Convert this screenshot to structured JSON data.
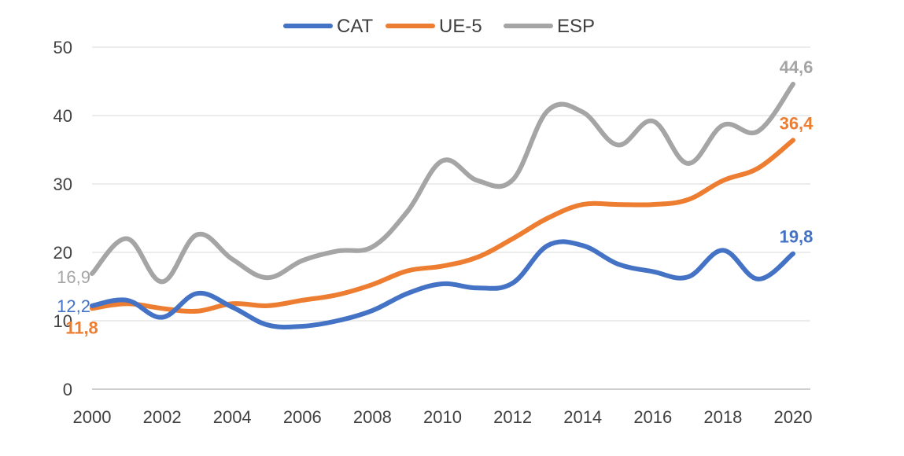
{
  "chart_data": {
    "type": "line",
    "title": "",
    "xlabel": "",
    "ylabel": "",
    "ylim": [
      0,
      50
    ],
    "yticks": [
      0,
      10,
      20,
      30,
      40,
      50
    ],
    "xlim": [
      2000,
      2020
    ],
    "xticks": [
      2000,
      2002,
      2004,
      2006,
      2008,
      2010,
      2012,
      2014,
      2016,
      2018,
      2020
    ],
    "grid": "horizontal",
    "legend_position": "top-center",
    "x": [
      2000,
      2001,
      2002,
      2003,
      2004,
      2005,
      2006,
      2007,
      2008,
      2009,
      2010,
      2011,
      2012,
      2013,
      2014,
      2015,
      2016,
      2017,
      2018,
      2019,
      2020
    ],
    "series": [
      {
        "name": "CAT",
        "color": "#4472C4",
        "values": [
          12.2,
          13.0,
          10.5,
          14.0,
          12.0,
          9.4,
          9.2,
          10.0,
          11.5,
          14.0,
          15.4,
          14.8,
          15.5,
          21.0,
          21.0,
          18.3,
          17.2,
          16.4,
          20.3,
          16.1,
          19.8
        ]
      },
      {
        "name": "UE-5",
        "color": "#ED7D31",
        "values": [
          11.8,
          12.5,
          11.8,
          11.4,
          12.5,
          12.2,
          13.0,
          13.8,
          15.3,
          17.3,
          18.0,
          19.3,
          22.0,
          25.0,
          27.0,
          27.0,
          27.0,
          27.7,
          30.5,
          32.3,
          36.4
        ]
      },
      {
        "name": "ESP",
        "color": "#A5A5A5",
        "values": [
          16.9,
          22.0,
          15.7,
          22.6,
          19.0,
          16.3,
          18.8,
          20.2,
          20.8,
          26.0,
          33.4,
          30.5,
          30.6,
          40.7,
          40.5,
          35.7,
          39.2,
          33.0,
          38.6,
          37.7,
          44.6
        ]
      }
    ],
    "annotations": [
      {
        "series": "ESP",
        "year": 2000,
        "text": "16,9",
        "color": "#A5A5A5",
        "bold": false,
        "side": "left"
      },
      {
        "series": "CAT",
        "year": 2000,
        "text": "12,2",
        "color": "#4472C4",
        "bold": false,
        "side": "left"
      },
      {
        "series": "UE-5",
        "year": 2000,
        "text": "11,8",
        "color": "#ED7D31",
        "bold": true,
        "side": "below"
      },
      {
        "series": "ESP",
        "year": 2020,
        "text": "44,6",
        "color": "#A5A5A5",
        "bold": true,
        "side": "above"
      },
      {
        "series": "UE-5",
        "year": 2020,
        "text": "36,4",
        "color": "#ED7D31",
        "bold": true,
        "side": "above"
      },
      {
        "series": "CAT",
        "year": 2020,
        "text": "19,8",
        "color": "#4472C4",
        "bold": true,
        "side": "above"
      }
    ]
  }
}
